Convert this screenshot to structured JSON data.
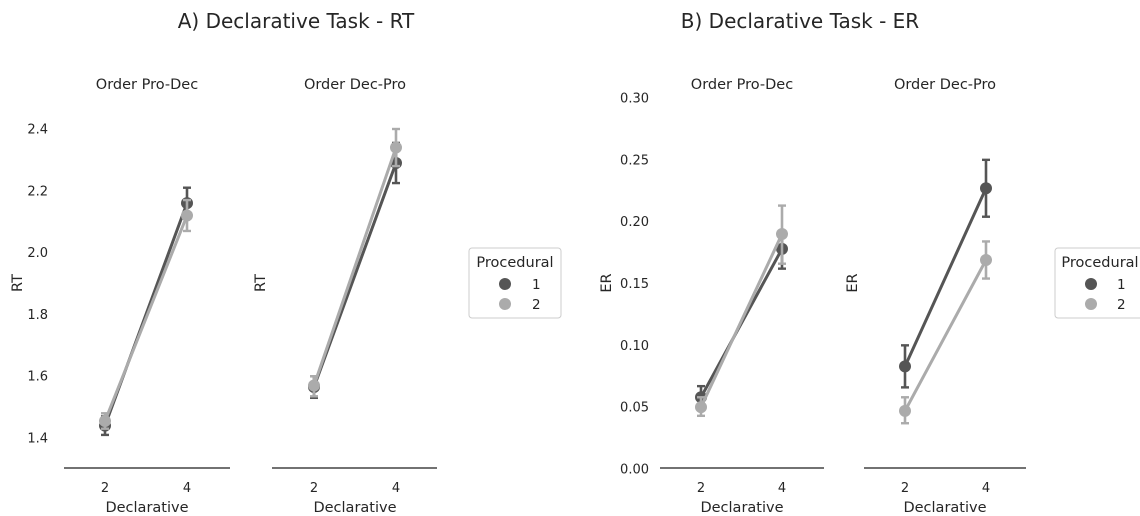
{
  "colors": {
    "level_1": "#555555",
    "level_2": "#ababab",
    "axis": "#444444",
    "legend_border": "#cccccc"
  },
  "chart_data": [
    {
      "type": "line",
      "title": "A) Declarative Task - RT",
      "legend": {
        "title": "Procedural",
        "placement": "right",
        "entries": [
          "1",
          "2"
        ]
      },
      "ylabel": "RT",
      "ylim": [
        1.3,
        2.5
      ],
      "yticks": [
        "1.4",
        "1.6",
        "1.8",
        "2.0",
        "2.2",
        "2.4"
      ],
      "panels": [
        {
          "title": "Order Pro-Dec",
          "xlabel": "Declarative",
          "categories": [
            "2",
            "4"
          ],
          "series": [
            {
              "name": "1",
              "values": [
                1.44,
                2.16
              ],
              "err_low": [
                1.41,
                2.11
              ],
              "err_high": [
                1.47,
                2.21
              ]
            },
            {
              "name": "2",
              "values": [
                1.455,
                2.12
              ],
              "err_low": [
                1.43,
                2.07
              ],
              "err_high": [
                1.48,
                2.17
              ]
            }
          ]
        },
        {
          "title": "Order Dec-Pro",
          "xlabel": "Declarative",
          "categories": [
            "2",
            "4"
          ],
          "series": [
            {
              "name": "1",
              "values": [
                1.565,
                2.29
              ],
              "err_low": [
                1.53,
                2.225
              ],
              "err_high": [
                1.6,
                2.355
              ]
            },
            {
              "name": "2",
              "values": [
                1.57,
                2.34
              ],
              "err_low": [
                1.535,
                2.28
              ],
              "err_high": [
                1.6,
                2.4
              ]
            }
          ]
        }
      ]
    },
    {
      "type": "line",
      "title": "B) Declarative Task - ER",
      "legend": {
        "title": "Procedural",
        "placement": "right",
        "entries": [
          "1",
          "2"
        ]
      },
      "ylabel": "ER",
      "ylim": [
        0.0,
        0.31
      ],
      "yticks": [
        "0.00",
        "0.05",
        "0.10",
        "0.15",
        "0.20",
        "0.25",
        "0.30"
      ],
      "panels": [
        {
          "title": "Order Pro-Dec",
          "xlabel": "Declarative",
          "categories": [
            "2",
            "4"
          ],
          "series": [
            {
              "name": "1",
              "values": [
                0.058,
                0.178
              ],
              "err_low": [
                0.05,
                0.162
              ],
              "err_high": [
                0.067,
                0.192
              ]
            },
            {
              "name": "2",
              "values": [
                0.05,
                0.19
              ],
              "err_low": [
                0.043,
                0.166
              ],
              "err_high": [
                0.058,
                0.213
              ]
            }
          ]
        },
        {
          "title": "Order Dec-Pro",
          "xlabel": "Declarative",
          "categories": [
            "2",
            "4"
          ],
          "series": [
            {
              "name": "1",
              "values": [
                0.083,
                0.227
              ],
              "err_low": [
                0.066,
                0.204
              ],
              "err_high": [
                0.1,
                0.25
              ]
            },
            {
              "name": "2",
              "values": [
                0.047,
                0.169
              ],
              "err_low": [
                0.037,
                0.154
              ],
              "err_high": [
                0.058,
                0.184
              ]
            }
          ]
        }
      ]
    }
  ]
}
